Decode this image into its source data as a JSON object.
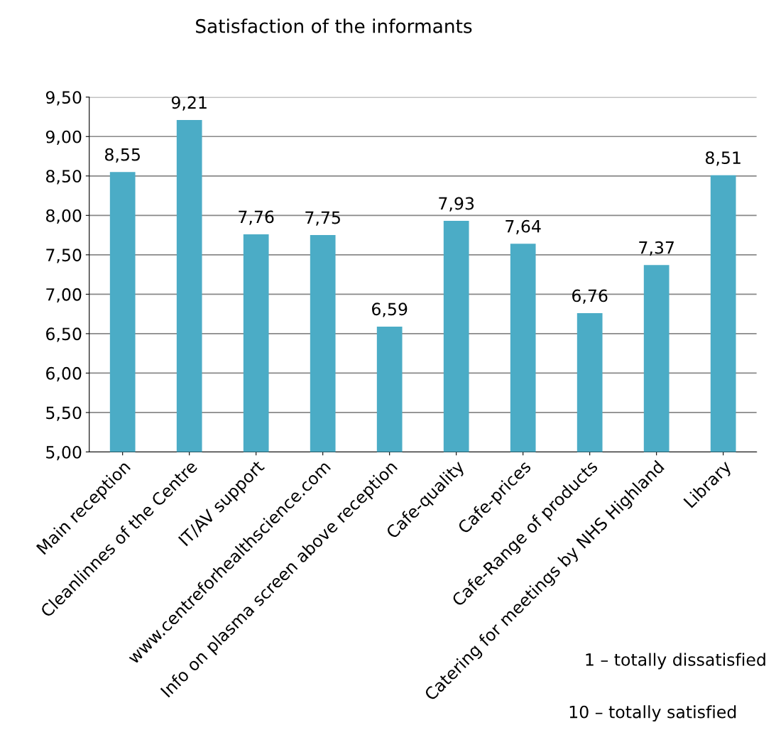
{
  "chart_data": {
    "type": "bar",
    "title": "Satisfaction of the informants",
    "categories": [
      "Main reception",
      "Cleanlinnes of the Centre",
      "IT/AV support",
      "www.centreforhealthscience.com",
      "Info on plasma screen above reception",
      "Cafe-quality",
      "Cafe-prices",
      "Cafe-Range of products",
      "Catering for meetings by NHS Highland",
      "Library"
    ],
    "values": [
      8.55,
      9.21,
      7.76,
      7.75,
      6.59,
      7.93,
      7.64,
      6.76,
      7.37,
      8.51
    ],
    "value_labels": [
      "8,55",
      "9,21",
      "7,76",
      "7,75",
      "6,59",
      "7,93",
      "7,64",
      "6,76",
      "7,37",
      "8,51"
    ],
    "color": "#4bacc6",
    "ylim": [
      5,
      9.5
    ],
    "yticks": [
      {
        "value": 5,
        "label": "5,00"
      },
      {
        "value": 5.5,
        "label": "5,50"
      },
      {
        "value": 6,
        "label": "6,00"
      },
      {
        "value": 6.5,
        "label": "6,50"
      },
      {
        "value": 7,
        "label": "7,00"
      },
      {
        "value": 7.5,
        "label": "7,50"
      },
      {
        "value": 8,
        "label": "8,00"
      },
      {
        "value": 8.5,
        "label": "8,50"
      },
      {
        "value": 9,
        "label": "9,00"
      },
      {
        "value": 9.5,
        "label": "9,50"
      }
    ],
    "grid": "y",
    "legend": false,
    "annotations": [
      "1 – totally dissatisfied",
      "10 – totally satisfied"
    ]
  }
}
